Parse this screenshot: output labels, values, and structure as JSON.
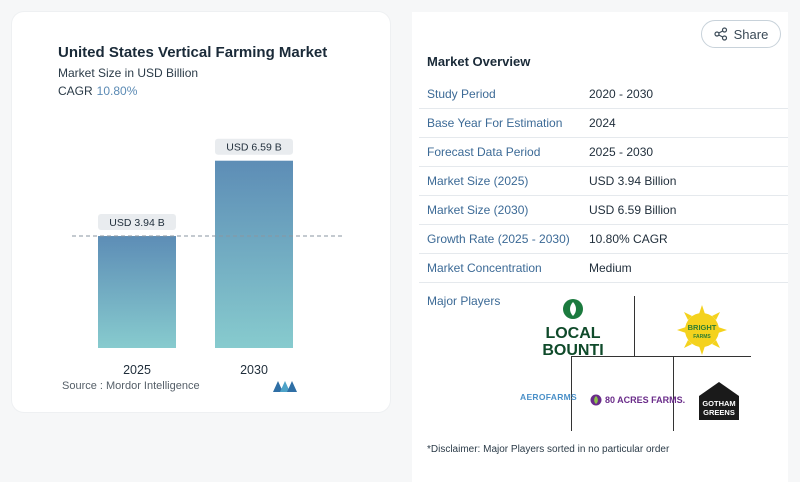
{
  "chart_data": {
    "type": "bar",
    "title": "United States Vertical Farming Market",
    "subtitle": "Market Size in USD Billion",
    "cagr_label": "CAGR",
    "cagr_value": "10.80%",
    "categories": [
      "2025",
      "2030"
    ],
    "values": [
      3.94,
      6.59
    ],
    "value_labels": [
      "USD 3.94 B",
      "USD 6.59 B"
    ],
    "ylim": [
      0,
      7.6
    ],
    "source": "Source :  Mordor Intelligence",
    "colors": {
      "bar_top": "#5d8db6",
      "bar_bottom": "#87cbce",
      "label_bg": "#e9ecef"
    }
  },
  "share": {
    "label": "Share",
    "icon": "share-icon"
  },
  "overview": {
    "title": "Market Overview",
    "rows": [
      {
        "label": "Study Period",
        "value": "2020 - 2030"
      },
      {
        "label": "Base Year For Estimation",
        "value": "2024"
      },
      {
        "label": "Forecast Data Period",
        "value": "2025 - 2030"
      },
      {
        "label": "Market Size (2025)",
        "value": "USD 3.94 Billion"
      },
      {
        "label": "Market Size (2030)",
        "value": "USD 6.59 Billion"
      },
      {
        "label": "Growth Rate (2025 - 2030)",
        "value": "10.80% CAGR"
      },
      {
        "label": "Market Concentration",
        "value": "Medium"
      }
    ],
    "players_label": "Major Players",
    "players": [
      "LOCAL BOUNTI",
      "BRIGHT FARMS",
      "AEROFARMS",
      "80 ACRES FARMS.",
      "GOTHAM GREENS"
    ],
    "disclaimer": "*Disclaimer: Major Players sorted in no particular order"
  }
}
